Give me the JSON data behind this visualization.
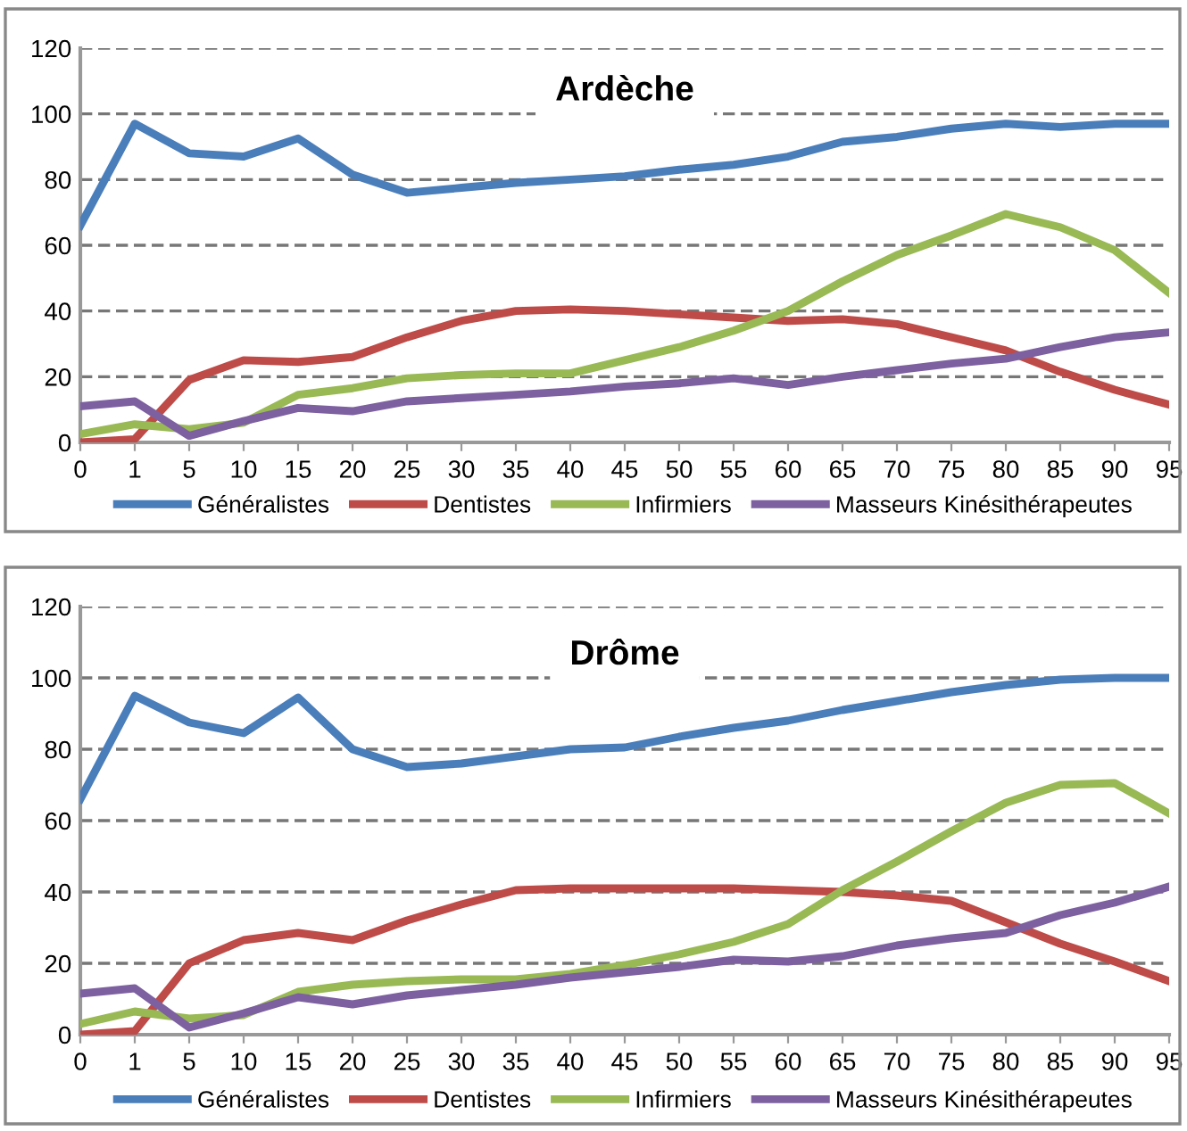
{
  "chart_data": [
    {
      "type": "line",
      "title": "Ardèche",
      "categories": [
        "0",
        "1",
        "5",
        "10",
        "15",
        "20",
        "25",
        "30",
        "35",
        "40",
        "45",
        "50",
        "55",
        "60",
        "65",
        "70",
        "75",
        "80",
        "85",
        "90",
        "95"
      ],
      "series": [
        {
          "name": "Généralistes",
          "color": "#4a7ebb",
          "values": [
            66,
            97,
            88,
            87,
            92.5,
            81.5,
            76,
            77.5,
            79,
            80,
            81,
            83,
            84.5,
            87,
            91.5,
            93,
            95.5,
            97,
            96,
            97,
            97
          ]
        },
        {
          "name": "Dentistes",
          "color": "#be4b48",
          "values": [
            0,
            1,
            19,
            25,
            24.5,
            26,
            32,
            37,
            40,
            40.5,
            40,
            39,
            38,
            37,
            37.5,
            36,
            32,
            28,
            21.5,
            16,
            11.5
          ]
        },
        {
          "name": "Infirmiers",
          "color": "#98b954",
          "values": [
            2.5,
            5.5,
            4,
            6,
            14.5,
            16.5,
            19.5,
            20.5,
            21,
            21,
            25,
            29,
            34,
            40,
            49,
            57,
            63,
            69.5,
            65.5,
            58.5,
            45.5
          ]
        },
        {
          "name": "Masseurs Kinésithérapeutes",
          "color": "#7d60a0",
          "values": [
            11,
            12.5,
            2,
            6.5,
            10.5,
            9.5,
            12.5,
            13.5,
            14.5,
            15.5,
            17,
            18,
            19.5,
            17.5,
            20,
            22,
            24,
            25.5,
            29,
            32,
            33.5
          ]
        }
      ],
      "ylim": [
        0,
        120
      ],
      "yticks": [
        0,
        20,
        40,
        60,
        80,
        100,
        120
      ],
      "grid": "y",
      "legend": "bottom",
      "marker": "none",
      "line_style": "solid"
    },
    {
      "type": "line",
      "title": "Drôme",
      "categories": [
        "0",
        "1",
        "5",
        "10",
        "15",
        "20",
        "25",
        "30",
        "35",
        "40",
        "45",
        "50",
        "55",
        "60",
        "65",
        "70",
        "75",
        "80",
        "85",
        "90",
        "95"
      ],
      "series": [
        {
          "name": "Généralistes",
          "color": "#4a7ebb",
          "values": [
            66,
            95,
            87.5,
            84.5,
            94.5,
            80,
            75,
            76,
            78,
            80,
            80.5,
            83.5,
            86,
            88,
            91,
            93.5,
            96,
            98,
            99.5,
            100,
            100
          ]
        },
        {
          "name": "Dentistes",
          "color": "#be4b48",
          "values": [
            0,
            1,
            20,
            26.5,
            28.5,
            26.5,
            32,
            36.5,
            40.5,
            41,
            41,
            41,
            41,
            40.5,
            40,
            39,
            37.5,
            31.5,
            25.5,
            20.5,
            15
          ]
        },
        {
          "name": "Infirmiers",
          "color": "#98b954",
          "values": [
            3,
            6.5,
            4.5,
            5.5,
            12,
            14,
            15,
            15.5,
            15.5,
            17,
            19.5,
            22.5,
            26,
            31,
            40.5,
            48.5,
            57,
            65,
            70,
            70.5,
            62
          ]
        },
        {
          "name": "Masseurs Kinésithérapeutes",
          "color": "#7d60a0",
          "values": [
            11.5,
            13,
            2,
            6,
            10.5,
            8.5,
            11,
            12.5,
            14,
            16,
            17.5,
            19,
            21,
            20.5,
            22,
            25,
            27,
            28.5,
            33.5,
            37,
            41.5
          ]
        }
      ],
      "ylim": [
        0,
        120
      ],
      "yticks": [
        0,
        20,
        40,
        60,
        80,
        100,
        120
      ],
      "grid": "y",
      "legend": "bottom",
      "marker": "none",
      "line_style": "solid"
    }
  ]
}
